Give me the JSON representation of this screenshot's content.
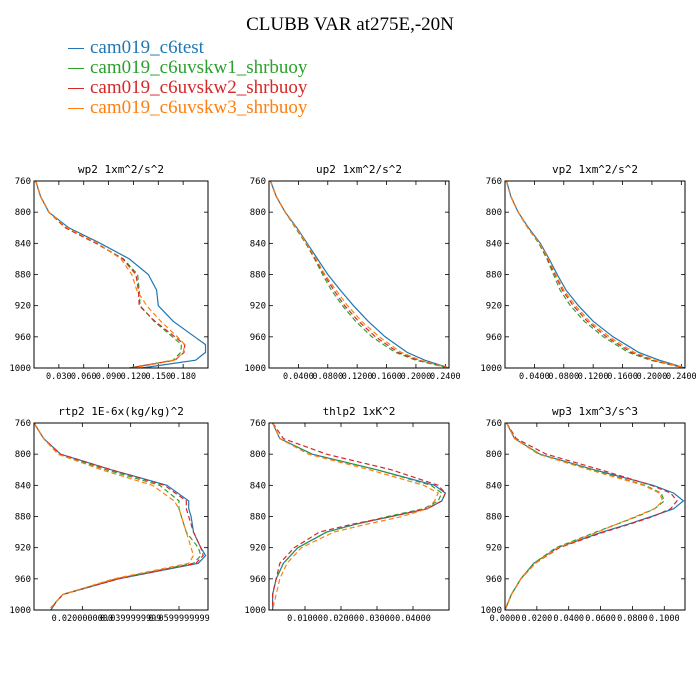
{
  "title": "CLUBB VAR at275E,-20N",
  "colors": {
    "cam019_c6test": "#1f77b4",
    "cam019_c6uvskw1_shrbuoy": "#2ca02c",
    "cam019_c6uvskw2_shrbuoy": "#d62728",
    "cam019_c6uvskw3_shrbuoy": "#ff7f0e"
  },
  "legend": [
    {
      "label": "cam019_c6test",
      "color": "#1f77b4"
    },
    {
      "label": "cam019_c6uvskw1_shrbuoy",
      "color": "#2ca02c"
    },
    {
      "label": "cam019_c6uvskw2_shrbuoy",
      "color": "#d62728"
    },
    {
      "label": "cam019_c6uvskw3_shrbuoy",
      "color": "#ff7f0e"
    }
  ],
  "chart_data": [
    {
      "type": "line",
      "title": "wp2  1xm^2/s^2",
      "y": [
        760,
        780,
        800,
        820,
        840,
        860,
        880,
        900,
        920,
        940,
        960,
        970,
        980,
        990,
        1000
      ],
      "ylim": [
        1000,
        760
      ],
      "xlim": [
        0,
        0.21
      ],
      "yticks": [
        760,
        800,
        840,
        880,
        920,
        960,
        1000
      ],
      "xticks": [
        0.03,
        0.06,
        0.09,
        0.12,
        0.15,
        0.18
      ],
      "xticklabels": [
        "0.030",
        "0.060",
        "0.090",
        "0.120",
        "0.150",
        "0.180"
      ],
      "series": [
        {
          "name": "cam019_c6test",
          "color": "#1f77b4",
          "dash": "",
          "values": [
            0.002,
            0.008,
            0.018,
            0.042,
            0.08,
            0.115,
            0.138,
            0.148,
            0.15,
            0.168,
            0.194,
            0.207,
            0.207,
            0.195,
            0.13
          ]
        },
        {
          "name": "cam019_c6uvskw1_shrbuoy",
          "color": "#2ca02c",
          "dash": "5,3",
          "values": [
            0.002,
            0.008,
            0.018,
            0.038,
            0.075,
            0.108,
            0.125,
            0.127,
            0.128,
            0.145,
            0.167,
            0.178,
            0.177,
            0.168,
            0.115
          ]
        },
        {
          "name": "cam019_c6uvskw2_shrbuoy",
          "color": "#d62728",
          "dash": "5,3",
          "values": [
            0.002,
            0.008,
            0.018,
            0.038,
            0.075,
            0.107,
            0.123,
            0.126,
            0.127,
            0.146,
            0.17,
            0.182,
            0.181,
            0.17,
            0.115
          ]
        },
        {
          "name": "cam019_c6uvskw3_shrbuoy",
          "color": "#ff7f0e",
          "dash": "5,3",
          "values": [
            0.002,
            0.008,
            0.018,
            0.04,
            0.077,
            0.105,
            0.118,
            0.124,
            0.136,
            0.153,
            0.173,
            0.182,
            0.18,
            0.17,
            0.12
          ]
        }
      ]
    },
    {
      "type": "line",
      "title": "up2  1xm^2/s^2",
      "y": [
        760,
        780,
        800,
        820,
        840,
        860,
        880,
        900,
        920,
        940,
        960,
        980,
        990,
        1000
      ],
      "ylim": [
        1000,
        760
      ],
      "xlim": [
        0,
        0.245
      ],
      "yticks": [
        760,
        800,
        840,
        880,
        920,
        960,
        1000
      ],
      "xticks": [
        0.04,
        0.08,
        0.12,
        0.16,
        0.2,
        0.24
      ],
      "xticklabels": [
        "0.0400",
        "0.0800",
        "0.1200",
        "0.1600",
        "0.2000",
        "0.2400"
      ],
      "series": [
        {
          "name": "cam019_c6test",
          "color": "#1f77b4",
          "dash": "",
          "values": [
            0.002,
            0.01,
            0.022,
            0.038,
            0.052,
            0.066,
            0.08,
            0.097,
            0.115,
            0.135,
            0.158,
            0.188,
            0.212,
            0.245
          ]
        },
        {
          "name": "cam019_c6uvskw1_shrbuoy",
          "color": "#2ca02c",
          "dash": "5,3",
          "values": [
            0.002,
            0.01,
            0.022,
            0.036,
            0.05,
            0.062,
            0.073,
            0.085,
            0.1,
            0.118,
            0.14,
            0.172,
            0.2,
            0.245
          ]
        },
        {
          "name": "cam019_c6uvskw2_shrbuoy",
          "color": "#d62728",
          "dash": "5,3",
          "values": [
            0.002,
            0.01,
            0.022,
            0.037,
            0.051,
            0.063,
            0.075,
            0.088,
            0.103,
            0.122,
            0.145,
            0.176,
            0.203,
            0.245
          ]
        },
        {
          "name": "cam019_c6uvskw3_shrbuoy",
          "color": "#ff7f0e",
          "dash": "5,3",
          "values": [
            0.002,
            0.01,
            0.022,
            0.037,
            0.051,
            0.064,
            0.076,
            0.091,
            0.107,
            0.126,
            0.15,
            0.18,
            0.206,
            0.245
          ]
        }
      ]
    },
    {
      "type": "line",
      "title": "vp2  1xm^2/s^2",
      "y": [
        760,
        780,
        800,
        820,
        840,
        860,
        880,
        900,
        920,
        940,
        960,
        980,
        990,
        1000
      ],
      "ylim": [
        1000,
        760
      ],
      "xlim": [
        0,
        0.245
      ],
      "yticks": [
        760,
        800,
        840,
        880,
        920,
        960,
        1000
      ],
      "xticks": [
        0.04,
        0.08,
        0.12,
        0.16,
        0.2,
        0.24
      ],
      "xticklabels": [
        "0.0400",
        "0.0800",
        "0.1200",
        "0.1600",
        "0.2000",
        "0.2400"
      ],
      "series": [
        {
          "name": "cam019_c6test",
          "color": "#1f77b4",
          "dash": "",
          "values": [
            0.002,
            0.008,
            0.018,
            0.032,
            0.048,
            0.06,
            0.071,
            0.083,
            0.1,
            0.12,
            0.147,
            0.182,
            0.21,
            0.245
          ]
        },
        {
          "name": "cam019_c6uvskw1_shrbuoy",
          "color": "#2ca02c",
          "dash": "5,3",
          "values": [
            0.002,
            0.008,
            0.018,
            0.031,
            0.046,
            0.057,
            0.066,
            0.075,
            0.089,
            0.108,
            0.134,
            0.168,
            0.198,
            0.245
          ]
        },
        {
          "name": "cam019_c6uvskw2_shrbuoy",
          "color": "#d62728",
          "dash": "5,3",
          "values": [
            0.002,
            0.008,
            0.018,
            0.031,
            0.047,
            0.058,
            0.068,
            0.078,
            0.093,
            0.112,
            0.138,
            0.172,
            0.201,
            0.245
          ]
        },
        {
          "name": "cam019_c6uvskw3_shrbuoy",
          "color": "#ff7f0e",
          "dash": "5,3",
          "values": [
            0.002,
            0.008,
            0.018,
            0.031,
            0.047,
            0.059,
            0.069,
            0.08,
            0.096,
            0.115,
            0.142,
            0.176,
            0.204,
            0.245
          ]
        }
      ]
    },
    {
      "type": "line",
      "title": "rtp2  1E-6x(kg/kg)^2",
      "y": [
        760,
        780,
        800,
        820,
        840,
        860,
        870,
        880,
        900,
        920,
        930,
        940,
        960,
        980,
        990,
        1000
      ],
      "ylim": [
        1000,
        760
      ],
      "xlim": [
        0,
        0.072
      ],
      "yticks": [
        760,
        800,
        840,
        880,
        920,
        960,
        1000
      ],
      "xticks": [
        0.02,
        0.04,
        0.06
      ],
      "xticklabels": [
        "0.0200000000",
        "0.0399999999",
        "0.0599999999"
      ],
      "series": [
        {
          "name": "cam019_c6test",
          "color": "#1f77b4",
          "dash": "",
          "values": [
            0.0,
            0.004,
            0.011,
            0.032,
            0.055,
            0.064,
            0.064,
            0.065,
            0.066,
            0.069,
            0.071,
            0.068,
            0.035,
            0.012,
            0.009,
            0.007
          ]
        },
        {
          "name": "cam019_c6uvskw1_shrbuoy",
          "color": "#2ca02c",
          "dash": "5,3",
          "values": [
            0.0,
            0.004,
            0.01,
            0.03,
            0.052,
            0.06,
            0.06,
            0.061,
            0.063,
            0.068,
            0.069,
            0.066,
            0.034,
            0.012,
            0.009,
            0.007
          ]
        },
        {
          "name": "cam019_c6uvskw2_shrbuoy",
          "color": "#d62728",
          "dash": "5,3",
          "values": [
            0.0,
            0.004,
            0.011,
            0.032,
            0.054,
            0.063,
            0.063,
            0.064,
            0.066,
            0.069,
            0.07,
            0.067,
            0.035,
            0.012,
            0.009,
            0.007
          ]
        },
        {
          "name": "cam019_c6uvskw3_shrbuoy",
          "color": "#ff7f0e",
          "dash": "5,3",
          "values": [
            0.0,
            0.004,
            0.01,
            0.028,
            0.049,
            0.058,
            0.06,
            0.061,
            0.063,
            0.065,
            0.066,
            0.064,
            0.033,
            0.012,
            0.009,
            0.006
          ]
        }
      ]
    },
    {
      "type": "line",
      "title": "thlp2  1xK^2",
      "y": [
        760,
        780,
        800,
        820,
        840,
        850,
        860,
        870,
        880,
        890,
        900,
        920,
        940,
        960,
        980,
        1000
      ],
      "ylim": [
        1000,
        760
      ],
      "xlim": [
        0,
        0.05
      ],
      "yticks": [
        760,
        800,
        840,
        880,
        920,
        960,
        1000
      ],
      "xticks": [
        0.01,
        0.02,
        0.03,
        0.04
      ],
      "xticklabels": [
        "0.01000",
        "0.02000",
        "0.03000",
        "0.04000"
      ],
      "series": [
        {
          "name": "cam019_c6test",
          "color": "#1f77b4",
          "dash": "",
          "values": [
            0.001,
            0.003,
            0.012,
            0.03,
            0.046,
            0.049,
            0.048,
            0.044,
            0.034,
            0.024,
            0.016,
            0.008,
            0.004,
            0.002,
            0.001,
            0.001
          ]
        },
        {
          "name": "cam019_c6uvskw1_shrbuoy",
          "color": "#2ca02c",
          "dash": "5,3",
          "values": [
            0.001,
            0.003,
            0.012,
            0.03,
            0.045,
            0.048,
            0.047,
            0.043,
            0.033,
            0.024,
            0.016,
            0.008,
            0.004,
            0.002,
            0.001,
            0.001
          ]
        },
        {
          "name": "cam019_c6uvskw2_shrbuoy",
          "color": "#d62728",
          "dash": "5,3",
          "values": [
            0.001,
            0.004,
            0.016,
            0.034,
            0.047,
            0.049,
            0.048,
            0.044,
            0.034,
            0.023,
            0.014,
            0.007,
            0.003,
            0.002,
            0.001,
            0.001
          ]
        },
        {
          "name": "cam019_c6uvskw3_shrbuoy",
          "color": "#ff7f0e",
          "dash": "5,3",
          "values": [
            0.001,
            0.003,
            0.011,
            0.028,
            0.043,
            0.047,
            0.046,
            0.044,
            0.037,
            0.027,
            0.018,
            0.009,
            0.005,
            0.003,
            0.002,
            0.001
          ]
        }
      ]
    },
    {
      "type": "line",
      "title": "wp3  1xm^3/s^3",
      "y": [
        760,
        780,
        800,
        820,
        840,
        850,
        860,
        870,
        880,
        890,
        900,
        920,
        940,
        960,
        980,
        1000
      ],
      "ylim": [
        1000,
        760
      ],
      "xlim": [
        0,
        0.113
      ],
      "yticks": [
        760,
        800,
        840,
        880,
        920,
        960,
        1000
      ],
      "xticks": [
        0.0,
        0.02,
        0.04,
        0.06,
        0.08,
        0.1
      ],
      "xticklabels": [
        "0.0000",
        "0.0200",
        "0.0400",
        "0.0600",
        "0.0800",
        "0.1000"
      ],
      "series": [
        {
          "name": "cam019_c6test",
          "color": "#1f77b4",
          "dash": "",
          "values": [
            0.001,
            0.006,
            0.022,
            0.056,
            0.093,
            0.106,
            0.112,
            0.106,
            0.092,
            0.077,
            0.061,
            0.033,
            0.018,
            0.01,
            0.004,
            0.0
          ]
        },
        {
          "name": "cam019_c6uvskw1_shrbuoy",
          "color": "#2ca02c",
          "dash": "5,3",
          "values": [
            0.001,
            0.006,
            0.022,
            0.055,
            0.088,
            0.098,
            0.1,
            0.094,
            0.083,
            0.07,
            0.057,
            0.032,
            0.018,
            0.01,
            0.004,
            0.0
          ]
        },
        {
          "name": "cam019_c6uvskw2_shrbuoy",
          "color": "#d62728",
          "dash": "5,3",
          "values": [
            0.001,
            0.007,
            0.026,
            0.06,
            0.092,
            0.104,
            0.108,
            0.104,
            0.093,
            0.078,
            0.062,
            0.034,
            0.019,
            0.01,
            0.004,
            0.0
          ]
        },
        {
          "name": "cam019_c6uvskw3_shrbuoy",
          "color": "#ff7f0e",
          "dash": "5,3",
          "values": [
            0.001,
            0.006,
            0.021,
            0.053,
            0.087,
            0.097,
            0.099,
            0.094,
            0.082,
            0.07,
            0.058,
            0.033,
            0.019,
            0.01,
            0.004,
            0.0
          ]
        }
      ]
    }
  ]
}
